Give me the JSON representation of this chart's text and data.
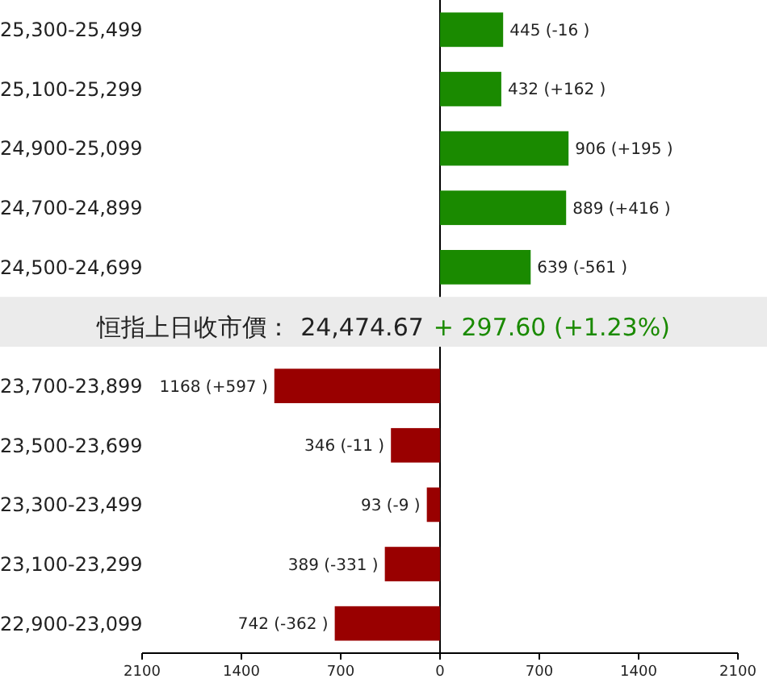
{
  "chart_data": {
    "type": "bar",
    "orientation": "horizontal",
    "categories": [
      "25,300-25,499",
      "25,100-25,299",
      "24,900-25,099",
      "24,700-24,899",
      "24,500-24,699",
      null,
      "23,700-23,899",
      "23,500-23,699",
      "23,300-23,499",
      "23,100-23,299",
      "22,900-23,099"
    ],
    "values": [
      445,
      432,
      906,
      889,
      639,
      null,
      1168,
      346,
      93,
      389,
      742
    ],
    "base": [
      0,
      0,
      0,
      0,
      0,
      null,
      -1168,
      -346,
      -93,
      -389,
      -742
    ],
    "colors": [
      "#1a8a00",
      "#1a8a00",
      "#1a8a00",
      "#1a8a00",
      "#1a8a00",
      null,
      "#990000",
      "#990000",
      "#990000",
      "#990000",
      "#990000"
    ],
    "value_labels": [
      "445 (-16 )",
      "432 (+162 )",
      "906 (+195 )",
      "889 (+416 )",
      "639 (-561 )",
      null,
      "1168 (+597 )",
      "346 (-11 )",
      "93 (-9 )",
      "389 (-331 )",
      "742 (-362 )"
    ],
    "xlim": [
      -2100,
      2100
    ],
    "xticks": [
      {
        "value": -2100,
        "label": "2100"
      },
      {
        "value": -1400,
        "label": "1400"
      },
      {
        "value": -700,
        "label": "700"
      },
      0,
      700,
      1400,
      2100
    ],
    "annotations": [
      "恒指上日收市價：",
      "24,474.67",
      "+ 297.60 (+1.23%)"
    ],
    "ref_lines": [
      {
        "axis": "x",
        "value": 0,
        "color": "#000000"
      }
    ],
    "grid": false
  }
}
